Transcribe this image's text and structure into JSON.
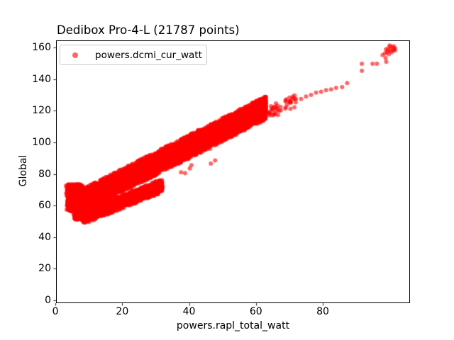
{
  "chart_data": {
    "type": "scatter",
    "title": "Dedibox Pro-4-L (21787 points)",
    "title_loc": "left",
    "xlabel": "powers.rapl_total_watt",
    "ylabel": "Global",
    "legend": {
      "label": "powers.dcmi_cur_watt",
      "position": "upper left"
    },
    "n_points_total": 21787,
    "xlim": [
      0.4,
      105.9
    ],
    "ylim": [
      -1.35,
      164.1
    ],
    "xticks": [
      0,
      20,
      40,
      60,
      80
    ],
    "yticks": [
      0,
      20,
      40,
      60,
      80,
      100,
      120,
      140,
      160
    ],
    "grid": false,
    "marker": {
      "color": "#ff0000",
      "alpha": 0.6,
      "radius_px": 3
    },
    "trend_note": "dense linear band: Global ≈ 54.5 + 1.07 × rapl_total_watt",
    "clusters": [
      {
        "shape": "rect",
        "n": 2000,
        "x": [
          3.8,
          7.8
        ],
        "y": [
          57,
          73
        ]
      },
      {
        "shape": "rect",
        "n": 1000,
        "x": [
          5.8,
          10.2
        ],
        "y": [
          51.5,
          63
        ]
      },
      {
        "shape": "band",
        "n": 15500,
        "x": [
          7,
          63
        ],
        "intercept": 54.5,
        "slope": 1.07,
        "sigma": 3.1,
        "clip": 7.5
      },
      {
        "shape": "band",
        "n": 3200,
        "x": [
          8,
          32
        ],
        "intercept": 45.5,
        "slope": 0.85,
        "sigma": 1.8,
        "clip": 4.5
      },
      {
        "shape": "band",
        "n": 45,
        "x": [
          63.5,
          72
        ],
        "intercept": 55.0,
        "slope": 1.0,
        "sigma": 2.3,
        "clip": 5
      }
    ],
    "sparse_points": [
      [
        24.2,
        68
      ],
      [
        37.6,
        81
      ],
      [
        38.8,
        80.5
      ],
      [
        40.2,
        83.5
      ],
      [
        40.7,
        85.5
      ],
      [
        44.8,
        95.5
      ],
      [
        46.3,
        96
      ],
      [
        46.5,
        86.5
      ],
      [
        47.8,
        88.5
      ],
      [
        73.5,
        127.5
      ],
      [
        75,
        129
      ],
      [
        76.5,
        130
      ],
      [
        78,
        131.5
      ],
      [
        79.5,
        132
      ],
      [
        81,
        133
      ],
      [
        82.5,
        133.5
      ],
      [
        84,
        134.5
      ],
      [
        85.8,
        135
      ],
      [
        87.3,
        137.5
      ],
      [
        91.7,
        145.3
      ],
      [
        91.7,
        149.8
      ],
      [
        94.9,
        149.8
      ],
      [
        96.2,
        149.8
      ],
      [
        99,
        151
      ],
      [
        98.8,
        153.3
      ],
      [
        97.9,
        155.3
      ],
      [
        98.6,
        156.2
      ],
      [
        99.2,
        157
      ],
      [
        99.8,
        155.8
      ],
      [
        99.6,
        157.8
      ],
      [
        100.2,
        158.4
      ],
      [
        100.6,
        157.2
      ],
      [
        101,
        158
      ],
      [
        101.4,
        159
      ],
      [
        100.9,
        160
      ],
      [
        100.2,
        160.6
      ],
      [
        99.5,
        159.4
      ],
      [
        98.9,
        158.8
      ],
      [
        100,
        161.3
      ],
      [
        101.2,
        160.8
      ],
      [
        101.6,
        158.2
      ],
      [
        101.6,
        159.6
      ]
    ]
  }
}
